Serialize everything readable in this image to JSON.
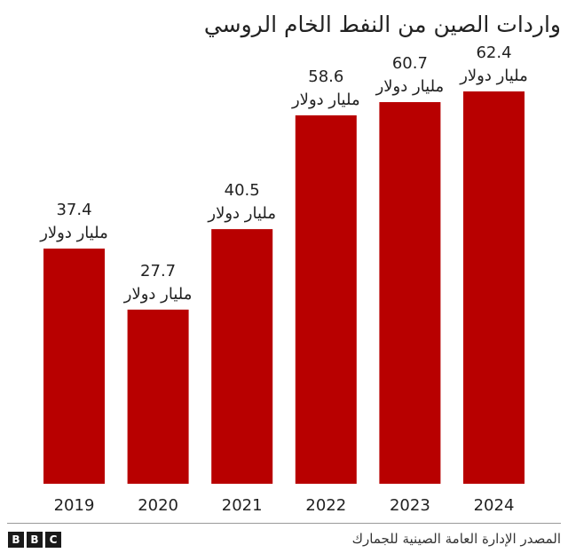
{
  "chart_data": {
    "type": "bar",
    "title": "واردات الصين من النفط الخام الروسي",
    "categories": [
      "2019",
      "2020",
      "2021",
      "2022",
      "2023",
      "2024"
    ],
    "values": [
      37.4,
      27.7,
      40.5,
      58.6,
      60.7,
      62.4
    ],
    "data_labels": [
      "37.4",
      "27.7",
      "40.5",
      "58.6",
      "60.7",
      "62.4"
    ],
    "unit_label": "مليار دولار",
    "bar_color": "#b80000",
    "grid": false,
    "ylim": [
      0,
      62.4
    ]
  },
  "footer": {
    "source": "المصدر الإدارة العامة الصينية للجمارك",
    "logo_letters": [
      "B",
      "B",
      "C"
    ]
  }
}
